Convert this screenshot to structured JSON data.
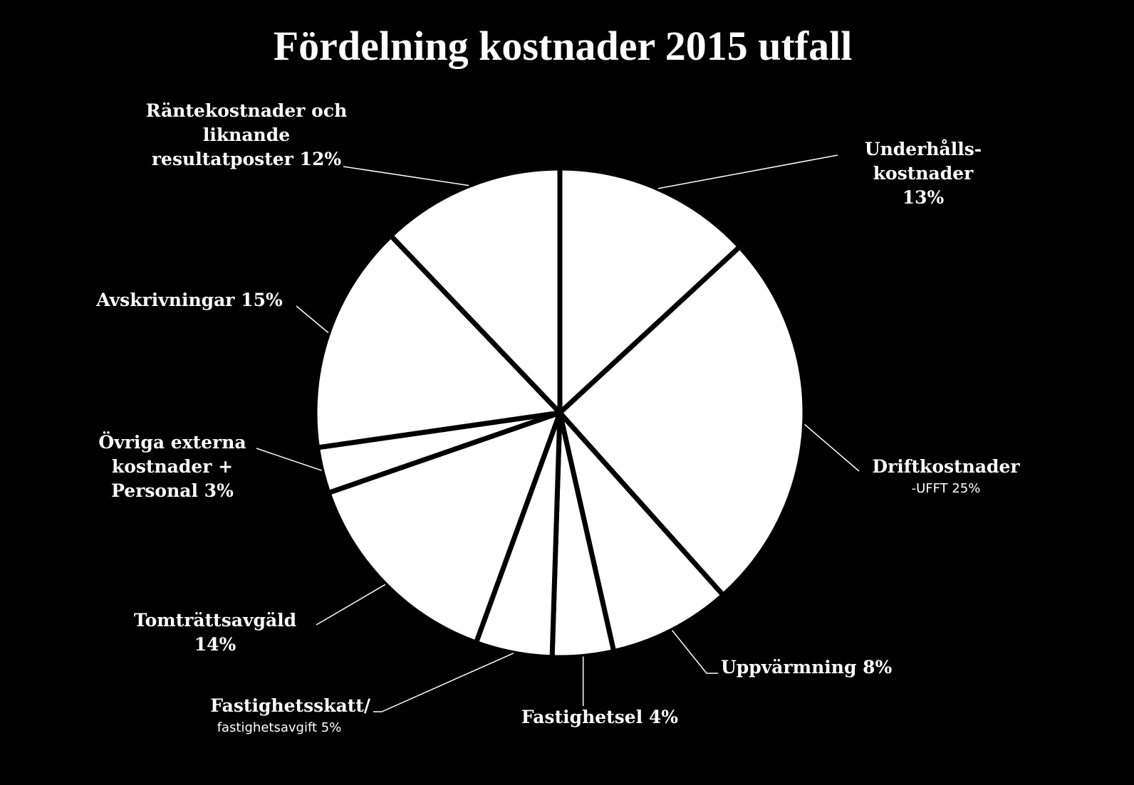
{
  "chart_data": {
    "type": "pie",
    "title": "Fördelning kostnader 2015 utfall",
    "colors": {
      "background": "#000000",
      "slice": "#ffffff",
      "border": "#000000",
      "text": "#ffffff"
    },
    "slices": [
      {
        "lines": [
          "Underhålls-",
          "kostnader",
          "13%"
        ],
        "percent": 13
      },
      {
        "lines": [
          "Driftkostnader"
        ],
        "sub": "-UFFT 25%",
        "percent": 25
      },
      {
        "lines": [
          "Uppvärmning 8%"
        ],
        "percent": 8
      },
      {
        "lines": [
          "Fastighetsel 4%"
        ],
        "percent": 4
      },
      {
        "lines": [
          "Fastighetsskatt/"
        ],
        "sub": "fastighetsavgift 5%",
        "percent": 5
      },
      {
        "lines": [
          "Tomträttsavgäld",
          "14%"
        ],
        "percent": 14
      },
      {
        "lines": [
          "Övriga externa",
          "kostnader +",
          "Personal 3%"
        ],
        "percent": 3
      },
      {
        "lines": [
          "Avskrivningar 15%"
        ],
        "percent": 15
      },
      {
        "lines": [
          "Räntekostnader och",
          "liknande",
          "resultatposter 12%"
        ],
        "percent": 12
      }
    ]
  }
}
